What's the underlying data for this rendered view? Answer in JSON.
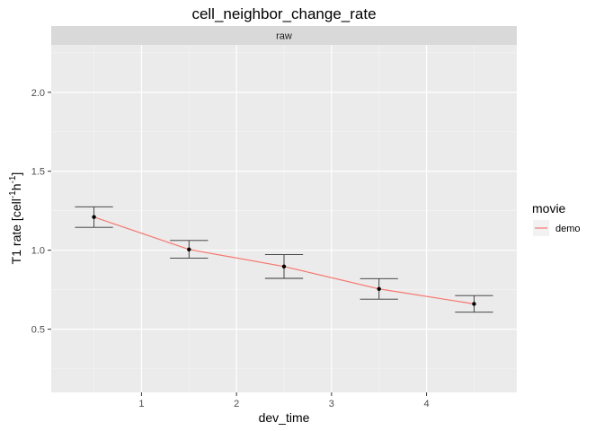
{
  "chart_data": {
    "type": "line",
    "title": "cell_neighbor_change_rate",
    "facet": "raw",
    "xlabel": "dev_time",
    "ylabel_prefix": "T1 rate [cell",
    "ylabel_sup1": "-1",
    "ylabel_mid": "h",
    "ylabel_sup2": "-1",
    "ylabel_suffix": "]",
    "xlim": [
      0.05,
      4.95
    ],
    "ylim": [
      0.1,
      2.3
    ],
    "x_ticks": [
      1,
      2,
      3,
      4
    ],
    "x_tick_labels": [
      "1",
      "2",
      "3",
      "4"
    ],
    "y_ticks": [
      0.5,
      1.0,
      1.5,
      2.0
    ],
    "y_tick_labels": [
      "0.5",
      "1.0",
      "1.5",
      "2.0"
    ],
    "legend": {
      "title": "movie",
      "position": "right"
    },
    "grid": true,
    "series": [
      {
        "name": "demo",
        "color": "#F8766D",
        "x": [
          0.5,
          1.5,
          2.5,
          3.5,
          4.5
        ],
        "y": [
          1.21,
          1.005,
          0.897,
          0.755,
          0.66
        ],
        "ymin": [
          1.145,
          0.95,
          0.822,
          0.69,
          0.608
        ],
        "ymax": [
          1.275,
          1.062,
          0.972,
          0.82,
          0.713
        ]
      }
    ]
  }
}
